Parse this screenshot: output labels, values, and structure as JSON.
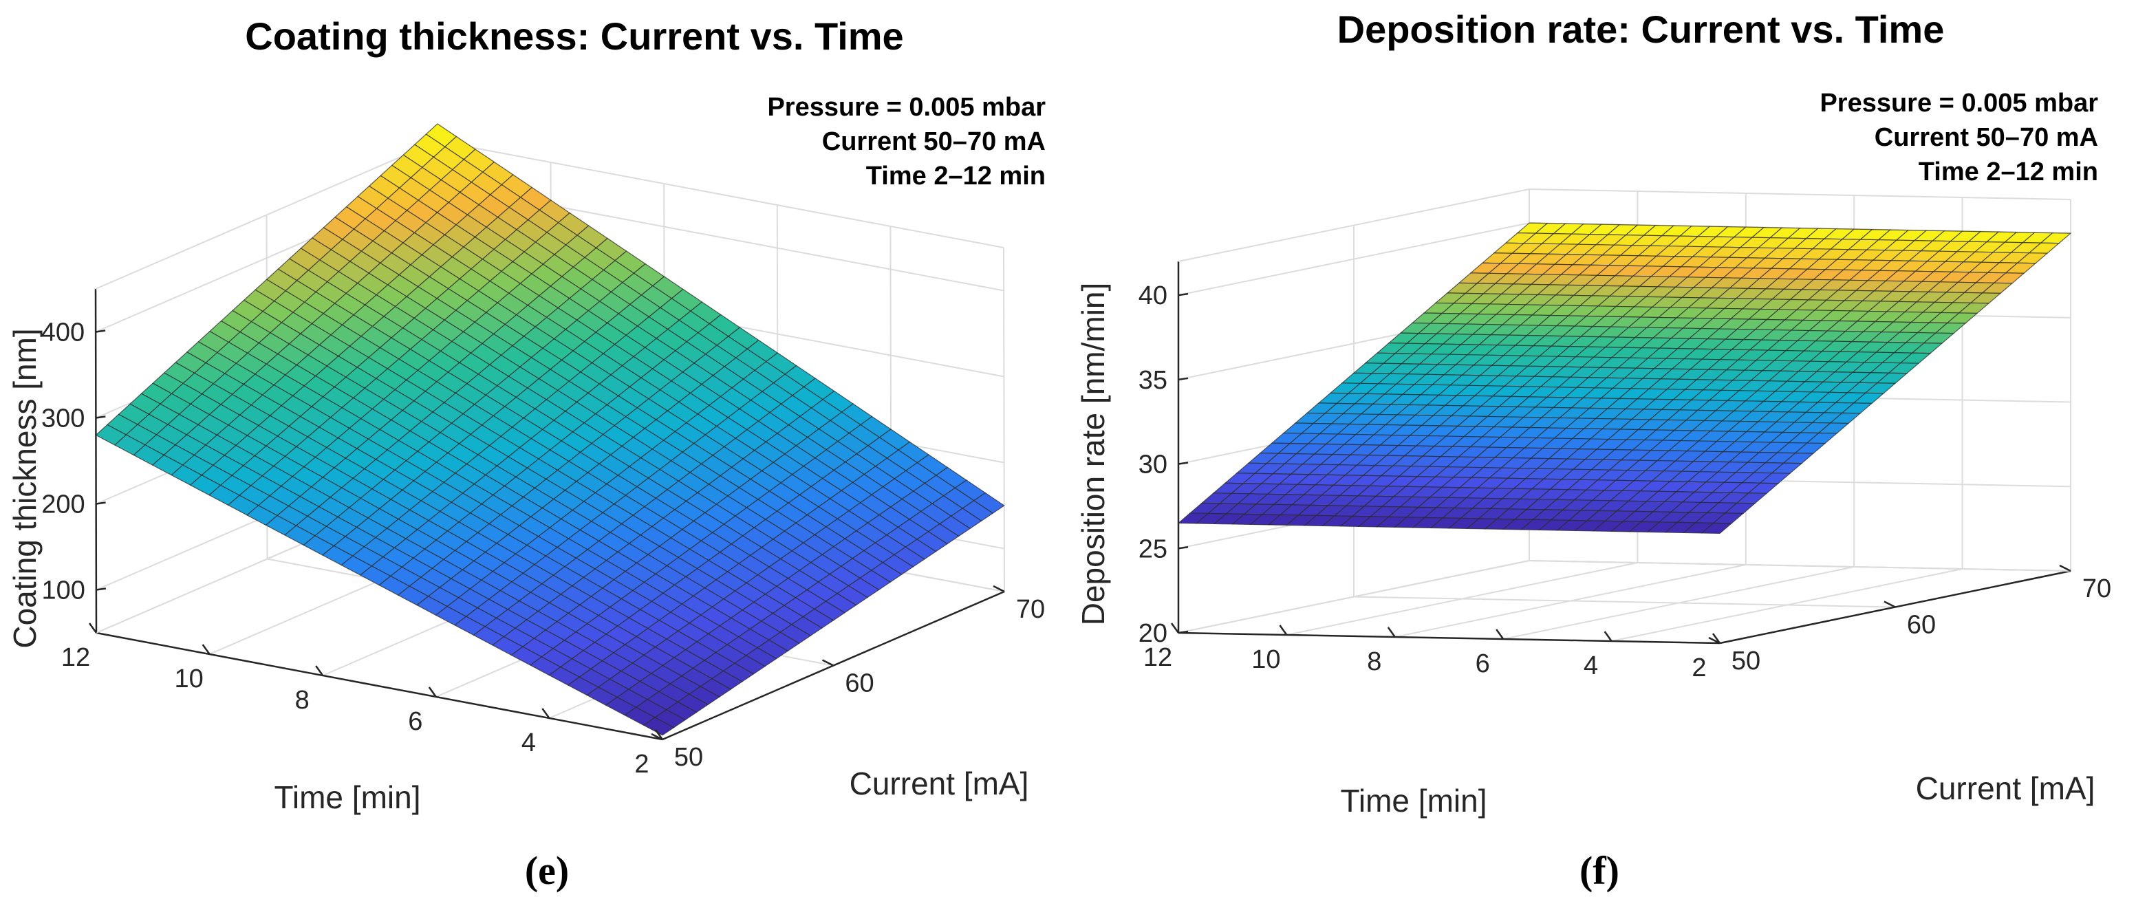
{
  "chart_data": [
    {
      "type": "surface",
      "panel_label": "(e)",
      "title": "Coating thickness: Current vs. Time",
      "annotations": [
        "Pressure = 0.005 mbar",
        "Current 50–70 mA",
        "Time 2–12 min"
      ],
      "xlabel": "Current [mA]",
      "ylabel": "Time [min]",
      "zlabel": "Coating thickness [nm]",
      "xlim": [
        50,
        70
      ],
      "ylim": [
        2,
        12
      ],
      "zlim": [
        50,
        450
      ],
      "xticks": [
        50,
        60,
        70
      ],
      "yticks": [
        2,
        4,
        6,
        8,
        10,
        12
      ],
      "zticks": [
        100,
        200,
        300,
        400
      ],
      "corner_values": {
        "current50_time2": 55,
        "current70_time2": 150,
        "current50_time12": 280,
        "current70_time12": 470
      },
      "colormap": "parula"
    },
    {
      "type": "surface",
      "panel_label": "(f)",
      "title": "Deposition rate: Current vs. Time",
      "annotations": [
        "Pressure = 0.005 mbar",
        "Current 50–70 mA",
        "Time 2–12 min"
      ],
      "xlabel": "Current [mA]",
      "ylabel": "Time [min]",
      "zlabel": "Deposition rate [nm/min]",
      "xlim": [
        50,
        70
      ],
      "ylim": [
        2,
        12
      ],
      "zlim": [
        20,
        42
      ],
      "xticks": [
        50,
        60,
        70
      ],
      "yticks": [
        2,
        4,
        6,
        8,
        10,
        12
      ],
      "zticks": [
        20,
        25,
        30,
        35,
        40
      ],
      "corner_values": {
        "current50_time2": 26.5,
        "current70_time2": 40,
        "current50_time12": 26.5,
        "current70_time12": 40
      },
      "colormap": "parula"
    }
  ]
}
